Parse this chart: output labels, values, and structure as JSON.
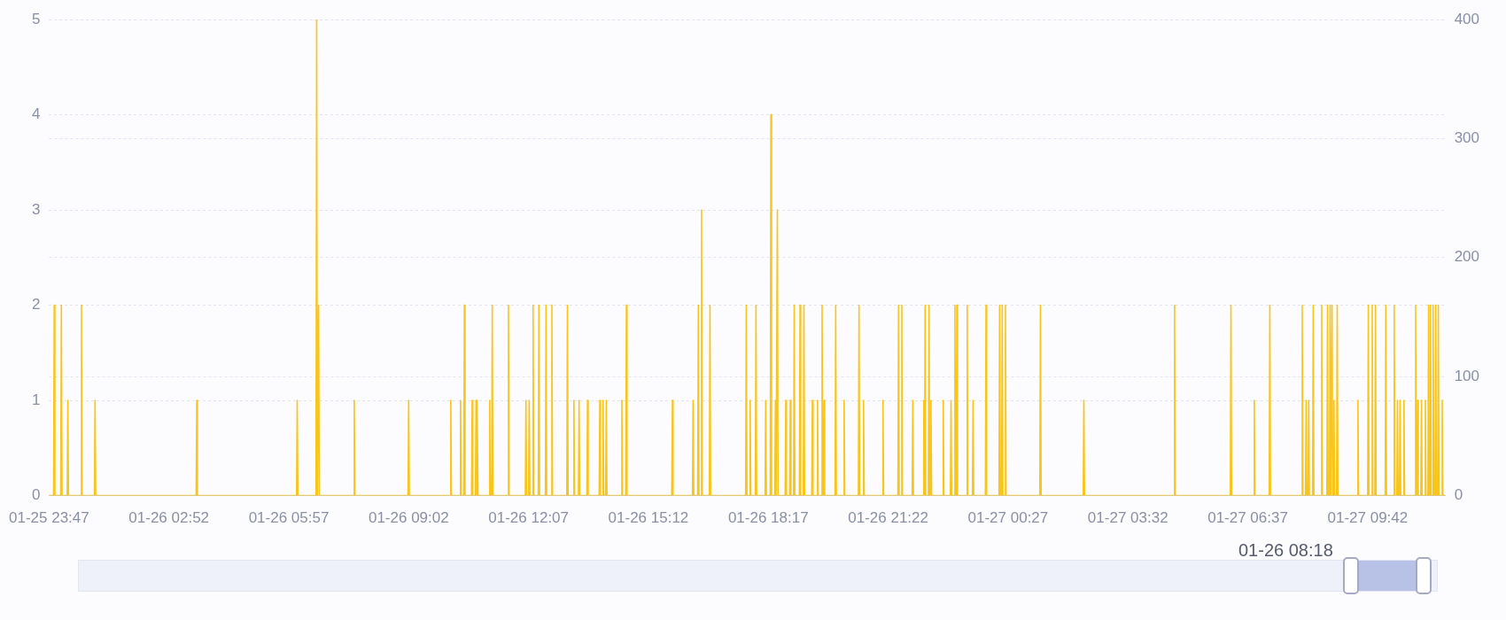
{
  "chart_data": {
    "type": "line",
    "color": "#f8c51c",
    "marker": "none",
    "line_style": "solid",
    "grid": "y",
    "xlim": [
      "--01-25T23:47",
      "--01-27T11:42"
    ],
    "xticks": [
      {
        "value": "--01-25T23:47",
        "label": "01-25 23:47"
      },
      {
        "value": "--01-26T02:52",
        "label": "01-26 02:52"
      },
      {
        "value": "--01-26T05:57",
        "label": "01-26 05:57"
      },
      {
        "value": "--01-26T09:02",
        "label": "01-26 09:02"
      },
      {
        "value": "--01-26T12:07",
        "label": "01-26 12:07"
      },
      {
        "value": "--01-26T15:12",
        "label": "01-26 15:12"
      },
      {
        "value": "--01-26T18:17",
        "label": "01-26 18:17"
      },
      {
        "value": "--01-26T21:22",
        "label": "01-26 21:22"
      },
      {
        "value": "--01-27T00:27",
        "label": "01-27 00:27"
      },
      {
        "value": "--01-27T03:32",
        "label": "01-27 03:32"
      },
      {
        "value": "--01-27T06:37",
        "label": "01-27 06:37"
      },
      {
        "value": "--01-27T09:42",
        "label": "01-27 09:42"
      }
    ],
    "ylim": [
      0,
      5
    ],
    "yticks": [
      0,
      1,
      2,
      3,
      4,
      5
    ],
    "y2lim": [
      0,
      400
    ],
    "y2ticks": [
      0,
      100,
      200,
      300,
      400
    ],
    "annotations": [
      "01-26 08:18"
    ],
    "x": [
      "--01-25T23:47",
      "--01-25T23:54",
      "--01-25T23:55",
      "--01-25T23:56",
      "--01-26T00:05",
      "--01-26T00:06",
      "--01-26T00:07",
      "--01-26T00:15",
      "--01-26T00:16",
      "--01-26T00:17",
      "--01-26T00:36",
      "--01-26T00:37",
      "--01-26T00:38",
      "--01-26T00:57",
      "--01-26T00:58",
      "--01-26T00:59",
      "--01-26T03:34",
      "--01-26T03:35",
      "--01-26T03:36",
      "--01-26T06:09",
      "--01-26T06:10",
      "--01-26T06:11",
      "--01-26T06:39",
      "--01-26T06:40",
      "--01-26T06:41",
      "--01-26T06:42",
      "--01-26T06:43",
      "--01-26T06:44",
      "--01-26T07:37",
      "--01-26T07:38",
      "--01-26T07:39",
      "--01-26T09:01",
      "--01-26T09:02",
      "--01-26T09:03",
      "--01-26T10:06",
      "--01-26T10:07",
      "--01-26T10:08",
      "--01-26T10:21",
      "--01-26T10:22",
      "--01-26T10:23",
      "--01-26T10:27",
      "--01-26T10:28",
      "--01-26T10:29",
      "--01-26T10:39",
      "--01-26T10:40",
      "--01-26T10:41",
      "--01-26T10:45",
      "--01-26T10:46",
      "--01-26T10:47",
      "--01-26T10:47",
      "--01-26T10:48",
      "--01-26T10:49",
      "--01-26T11:06",
      "--01-26T11:07",
      "--01-26T11:08",
      "--01-26T11:10",
      "--01-26T11:11",
      "--01-26T11:12",
      "--01-26T11:35",
      "--01-26T11:36",
      "--01-26T11:37",
      "--01-26T12:02",
      "--01-26T12:03",
      "--01-26T12:04",
      "--01-26T12:07",
      "--01-26T12:08",
      "--01-26T12:09",
      "--01-26T12:13",
      "--01-26T12:14",
      "--01-26T12:15",
      "--01-26T12:22",
      "--01-26T12:23",
      "--01-26T12:24",
      "--01-26T12:33",
      "--01-26T12:34",
      "--01-26T12:35",
      "--01-26T12:42",
      "--01-26T12:43",
      "--01-26T12:44",
      "--01-26T13:06",
      "--01-26T13:07",
      "--01-26T13:08",
      "--01-26T13:16",
      "--01-26T13:17",
      "--01-26T13:18",
      "--01-26T13:24",
      "--01-26T13:25",
      "--01-26T13:26",
      "--01-26T13:37",
      "--01-26T13:38",
      "--01-26T13:39",
      "--01-26T13:56",
      "--01-26T13:57",
      "--01-26T13:58",
      "--01-26T14:01",
      "--01-26T14:02",
      "--01-26T14:03",
      "--01-26T14:06",
      "--01-26T14:07",
      "--01-26T14:08",
      "--01-26T14:30",
      "--01-26T14:31",
      "--01-26T14:32",
      "--01-26T14:37",
      "--01-26T14:38",
      "--01-26T14:39",
      "--01-26T15:48",
      "--01-26T15:49",
      "--01-26T15:50",
      "--01-26T16:20",
      "--01-26T16:21",
      "--01-26T16:22",
      "--01-26T16:28",
      "--01-26T16:29",
      "--01-26T16:30",
      "--01-26T16:33",
      "--01-26T16:34",
      "--01-26T16:35",
      "--01-26T16:46",
      "--01-26T16:47",
      "--01-26T16:48",
      "--01-26T17:42",
      "--01-26T17:43",
      "--01-26T17:44",
      "--01-26T17:48",
      "--01-26T17:49",
      "--01-26T17:50",
      "--01-26T17:57",
      "--01-26T17:58",
      "--01-26T17:59",
      "--01-26T18:12",
      "--01-26T18:13",
      "--01-26T18:14",
      "--01-26T18:20",
      "--01-26T18:21",
      "--01-26T18:22",
      "--01-26T18:27",
      "--01-26T18:28",
      "--01-26T18:29",
      "--01-26T18:30",
      "--01-26T18:31",
      "--01-26T18:32",
      "--01-26T18:43",
      "--01-26T18:44",
      "--01-26T18:45",
      "--01-26T18:50",
      "--01-26T18:51",
      "--01-26T18:52",
      "--01-26T18:56",
      "--01-26T18:57",
      "--01-26T18:58",
      "--01-26T19:05",
      "--01-26T19:06",
      "--01-26T19:07",
      "--01-26T19:11",
      "--01-26T19:12",
      "--01-26T19:13",
      "--01-26T19:24",
      "--01-26T19:25",
      "--01-26T19:26",
      "--01-26T19:32",
      "--01-26T19:33",
      "--01-26T19:34",
      "--01-26T19:39",
      "--01-26T19:40",
      "--01-26T19:41",
      "--01-26T19:42",
      "--01-26T19:43",
      "--01-26T19:44",
      "--01-26T20:00",
      "--01-26T20:01",
      "--01-26T20:02",
      "--01-26T20:13",
      "--01-26T20:14",
      "--01-26T20:15",
      "--01-26T20:36",
      "--01-26T20:37",
      "--01-26T20:38",
      "--01-26T20:43",
      "--01-26T20:44",
      "--01-26T20:45",
      "--01-26T21:13",
      "--01-26T21:14",
      "--01-26T21:15",
      "--01-26T21:37",
      "--01-26T21:38",
      "--01-26T21:39",
      "--01-26T21:42",
      "--01-26T21:43",
      "--01-26T21:44",
      "--01-26T21:59",
      "--01-26T22:00",
      "--01-26T22:01",
      "--01-26T22:16",
      "--01-26T22:17",
      "--01-26T22:18",
      "--01-26T22:18",
      "--01-26T22:19",
      "--01-26T22:20",
      "--01-26T22:24",
      "--01-26T22:25",
      "--01-26T22:26",
      "--01-26T22:27",
      "--01-26T22:28",
      "--01-26T22:29",
      "--01-26T22:46",
      "--01-26T22:47",
      "--01-26T22:48",
      "--01-26T22:58",
      "--01-26T22:59",
      "--01-26T23:00",
      "--01-26T23:04",
      "--01-26T23:05",
      "--01-26T23:06",
      "--01-26T23:07",
      "--01-26T23:08",
      "--01-26T23:09",
      "--01-26T23:23",
      "--01-26T23:24",
      "--01-26T23:25",
      "--01-26T23:32",
      "--01-26T23:33",
      "--01-26T23:34",
      "--01-26T23:52",
      "--01-26T23:53",
      "--01-26T23:54",
      "--01-27T00:13",
      "--01-27T00:14",
      "--01-27T00:15",
      "--01-27T00:17",
      "--01-27T00:18",
      "--01-27T00:19",
      "--01-27T00:22",
      "--01-27T00:23",
      "--01-27T00:24",
      "--01-27T01:16",
      "--01-27T01:17",
      "--01-27T01:18",
      "--01-27T02:23",
      "--01-27T02:24",
      "--01-27T02:25",
      "--01-27T04:43",
      "--01-27T04:44",
      "--01-27T04:45",
      "--01-27T06:10",
      "--01-27T06:11",
      "--01-27T06:12",
      "--01-27T06:46",
      "--01-27T06:47",
      "--01-27T06:48",
      "--01-27T07:10",
      "--01-27T07:11",
      "--01-27T07:12",
      "--01-27T08:00",
      "--01-27T08:01",
      "--01-27T08:02",
      "--01-27T08:06",
      "--01-27T08:07",
      "--01-27T08:08",
      "--01-27T08:10",
      "--01-27T08:11",
      "--01-27T08:12",
      "--01-27T08:17",
      "--01-27T08:18",
      "--01-27T08:19",
      "--01-27T08:30",
      "--01-27T08:31",
      "--01-27T08:32",
      "--01-27T08:39",
      "--01-27T08:40",
      "--01-27T08:41",
      "--01-27T08:43",
      "--01-27T08:44",
      "--01-27T08:45",
      "--01-27T08:46",
      "--01-27T08:47",
      "--01-27T08:48",
      "--01-27T08:49",
      "--01-27T08:50",
      "--01-27T08:51",
      "--01-27T08:54",
      "--01-27T08:55",
      "--01-27T08:56",
      "--01-27T09:26",
      "--01-27T09:27",
      "--01-27T09:28",
      "--01-27T09:42",
      "--01-27T09:43",
      "--01-27T09:44",
      "--01-27T09:48",
      "--01-27T09:49",
      "--01-27T09:50",
      "--01-27T09:53",
      "--01-27T09:54",
      "--01-27T09:55",
      "--01-27T10:09",
      "--01-27T10:10",
      "--01-27T10:11",
      "--01-27T10:22",
      "--01-27T10:23",
      "--01-27T10:24",
      "--01-27T10:27",
      "--01-27T10:28",
      "--01-27T10:29",
      "--01-27T10:31",
      "--01-27T10:32",
      "--01-27T10:33",
      "--01-27T10:37",
      "--01-27T10:38",
      "--01-27T10:39",
      "--01-27T10:55",
      "--01-27T10:56",
      "--01-27T10:57",
      "--01-27T10:58",
      "--01-27T10:59",
      "--01-27T11:00",
      "--01-27T11:04",
      "--01-27T11:05",
      "--01-27T11:06",
      "--01-27T11:10",
      "--01-27T11:11",
      "--01-27T11:12",
      "--01-27T11:15",
      "--01-27T11:16",
      "--01-27T11:17",
      "--01-27T11:18",
      "--01-27T11:19",
      "--01-27T11:20",
      "--01-27T11:22",
      "--01-27T11:23",
      "--01-27T11:24",
      "--01-27T11:26",
      "--01-27T11:27",
      "--01-27T11:28",
      "--01-27T11:30",
      "--01-27T11:31",
      "--01-27T11:32",
      "--01-27T11:36",
      "--01-27T11:37",
      "--01-27T11:38",
      "--01-27T11:42"
    ],
    "values": [
      0,
      0,
      2,
      0,
      0,
      2,
      0,
      0,
      1,
      0,
      0,
      2,
      0,
      0,
      1,
      0,
      0,
      1,
      0,
      0,
      1,
      0,
      0,
      5,
      0,
      0,
      2,
      0,
      0,
      1,
      0,
      0,
      1,
      0,
      0,
      1,
      0,
      0,
      1,
      0,
      0,
      2,
      0,
      0,
      1,
      0,
      0,
      1,
      0,
      0,
      1,
      0,
      0,
      1,
      0,
      0,
      2,
      0,
      0,
      2,
      0,
      0,
      1,
      0,
      0,
      1,
      0,
      0,
      2,
      0,
      0,
      2,
      0,
      0,
      2,
      0,
      0,
      2,
      0,
      0,
      2,
      0,
      0,
      1,
      0,
      0,
      1,
      0,
      0,
      1,
      0,
      0,
      1,
      0,
      0,
      1,
      0,
      0,
      1,
      0,
      0,
      1,
      0,
      0,
      2,
      0,
      0,
      1,
      0,
      0,
      1,
      0,
      0,
      2,
      0,
      0,
      3,
      0,
      0,
      2,
      0,
      0,
      2,
      0,
      0,
      1,
      0,
      0,
      2,
      0,
      0,
      1,
      0,
      0,
      4,
      0,
      0,
      1,
      0,
      0,
      3,
      0,
      0,
      1,
      0,
      0,
      1,
      0,
      0,
      2,
      0,
      0,
      2,
      0,
      0,
      2,
      0,
      0,
      1,
      0,
      0,
      1,
      0,
      0,
      2,
      0,
      0,
      1,
      0,
      0,
      2,
      0,
      0,
      1,
      0,
      0,
      2,
      0,
      0,
      1,
      0,
      0,
      1,
      0,
      0,
      2,
      0,
      0,
      2,
      0,
      0,
      1,
      0,
      0,
      1,
      0,
      0,
      2,
      0,
      0,
      2,
      0,
      0,
      1,
      0,
      0,
      1,
      0,
      0,
      1,
      0,
      0,
      2,
      0,
      0,
      2,
      0,
      0,
      2,
      0,
      0,
      1,
      0,
      0,
      2,
      0,
      0,
      2,
      0,
      0,
      2,
      0,
      0,
      2,
      0,
      0,
      2,
      0,
      0,
      1,
      0,
      0,
      2,
      0,
      0,
      2,
      0,
      0,
      1,
      0,
      0,
      2,
      0,
      0,
      2,
      0,
      0,
      1,
      0,
      0,
      1,
      0,
      0,
      2,
      0,
      0,
      2,
      0,
      0,
      2,
      0,
      0,
      2,
      0,
      0,
      2,
      0,
      0,
      1,
      0,
      0,
      2,
      0,
      0,
      1,
      0,
      0,
      2,
      0,
      0,
      2,
      0,
      0,
      2,
      0,
      0,
      2,
      0,
      0,
      2,
      0,
      0,
      1,
      0,
      0,
      1,
      0,
      0,
      1,
      0,
      0,
      2,
      0,
      0,
      1,
      0,
      0,
      1,
      0,
      0,
      1,
      0,
      0,
      2,
      0,
      0,
      2,
      0,
      0,
      2,
      0,
      0,
      2,
      0,
      0,
      2,
      0,
      0,
      1,
      0,
      0
    ]
  }
}
